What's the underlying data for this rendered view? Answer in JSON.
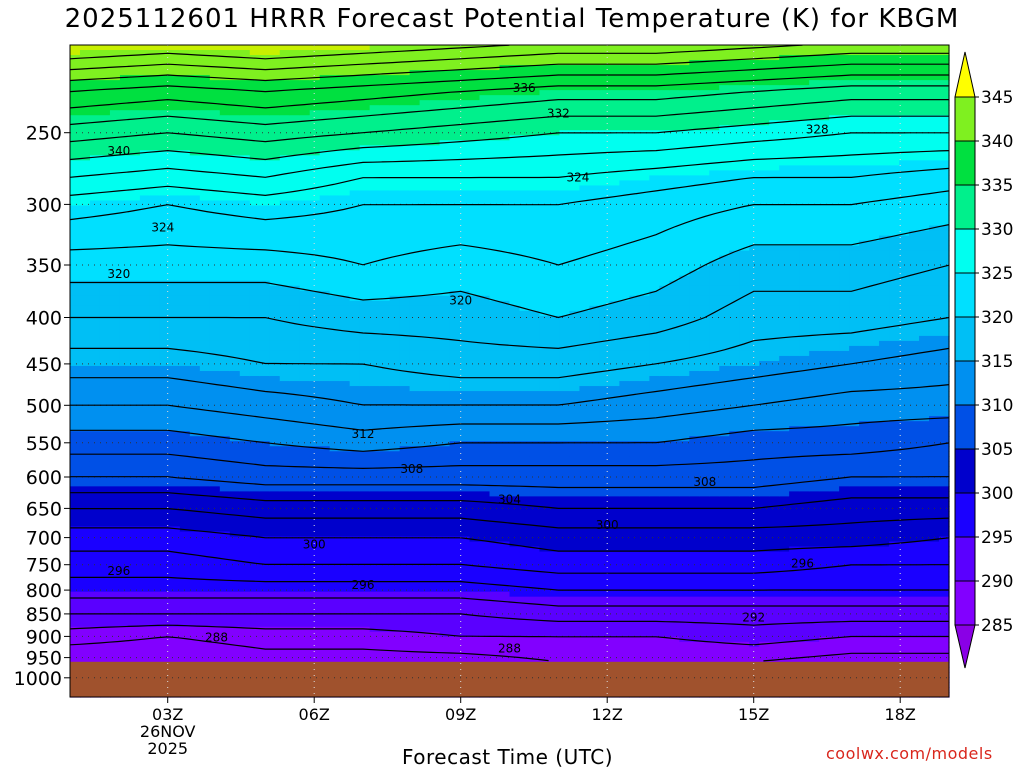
{
  "header": {
    "title": "2025112601 HRRR Forecast Potential Temperature (K) for KBGM",
    "xlabel": "Forecast Time (UTC)",
    "credit": "coolwx.com/models"
  },
  "chart_data": {
    "type": "heatmap",
    "title": "2025112601 HRRR Forecast Potential Temperature (K) for KBGM",
    "xlabel": "Forecast Time (UTC)",
    "ylabel": "",
    "x_range_hours": [
      1,
      19
    ],
    "y_range_hpa": [
      200,
      1050
    ],
    "y_scale": "log-pressure",
    "grid": "dotted",
    "x_ticks": [
      {
        "hour": 3,
        "label": "03Z",
        "sub": [
          "26NOV",
          "2025"
        ]
      },
      {
        "hour": 6,
        "label": "06Z"
      },
      {
        "hour": 9,
        "label": "09Z"
      },
      {
        "hour": 12,
        "label": "12Z"
      },
      {
        "hour": 15,
        "label": "15Z"
      },
      {
        "hour": 18,
        "label": "18Z"
      }
    ],
    "y_ticks": [
      250,
      300,
      350,
      400,
      450,
      500,
      550,
      600,
      650,
      700,
      750,
      800,
      850,
      900,
      950,
      1000
    ],
    "colorbar": {
      "levels": [
        280,
        285,
        290,
        295,
        300,
        305,
        310,
        315,
        320,
        325,
        330,
        335,
        340,
        345,
        350
      ],
      "labels": [
        "285",
        "290",
        "295",
        "300",
        "305",
        "310",
        "315",
        "320",
        "325",
        "330",
        "335",
        "340",
        "345"
      ],
      "colors": [
        "#8a00e6",
        "#8200ff",
        "#5a00ff",
        "#1a00ff",
        "#0000cc",
        "#0050e6",
        "#0090f0",
        "#00bff5",
        "#00e0ff",
        "#00fff0",
        "#00f08c",
        "#00e040",
        "#7ff020",
        "#c8f000",
        "#ffff00"
      ]
    },
    "profile_hours": [
      1,
      3,
      5,
      7,
      9,
      11,
      13,
      15,
      17,
      19
    ],
    "contour_levels": [
      286,
      288,
      290,
      292,
      294,
      296,
      298,
      300,
      302,
      304,
      306,
      308,
      310,
      312,
      314,
      316,
      318,
      320,
      322,
      324,
      326,
      328,
      330,
      332,
      334,
      336,
      338,
      340,
      342,
      344
    ],
    "theta_profiles": [
      {
        "hour": 1,
        "pressure": [
          960,
          900,
          850,
          800,
          750,
          700,
          650,
          600,
          550,
          500,
          450,
          400,
          350,
          300,
          280,
          250,
          225,
          210
        ],
        "theta": [
          286,
          289,
          292,
          295,
          297,
          299,
          302,
          306,
          309,
          312,
          315,
          318,
          321,
          325,
          328,
          333,
          338,
          343
        ]
      },
      {
        "hour": 3,
        "pressure": [
          960,
          900,
          850,
          800,
          750,
          700,
          650,
          600,
          550,
          500,
          450,
          400,
          350,
          300,
          280,
          250,
          225,
          210
        ],
        "theta": [
          286,
          288,
          292,
          295,
          297,
          299,
          302,
          306,
          309,
          312,
          315,
          318,
          321,
          324,
          327,
          332,
          337,
          342
        ]
      },
      {
        "hour": 5,
        "pressure": [
          960,
          900,
          850,
          800,
          750,
          700,
          650,
          600,
          550,
          500,
          450,
          400,
          350,
          300,
          280,
          250,
          225,
          210
        ],
        "theta": [
          287,
          289,
          292,
          295,
          298,
          300,
          303,
          307,
          310,
          313,
          316,
          318,
          321,
          325,
          328,
          333,
          338,
          343
        ]
      },
      {
        "hour": 7,
        "pressure": [
          960,
          900,
          850,
          800,
          750,
          700,
          650,
          600,
          550,
          500,
          450,
          400,
          350,
          300,
          280,
          250,
          225,
          210
        ],
        "theta": [
          287,
          289,
          292,
          295,
          298,
          300,
          303,
          307,
          311,
          314,
          316,
          319,
          322,
          324,
          326,
          332,
          337,
          342
        ]
      },
      {
        "hour": 9,
        "pressure": [
          960,
          900,
          850,
          800,
          750,
          700,
          650,
          600,
          550,
          500,
          450,
          400,
          350,
          300,
          280,
          250,
          225,
          210
        ],
        "theta": [
          287,
          290,
          292,
          295,
          298,
          300,
          303,
          307,
          310,
          314,
          317,
          319,
          321,
          324,
          326,
          331,
          336,
          341
        ]
      },
      {
        "hour": 11,
        "pressure": [
          960,
          900,
          850,
          800,
          750,
          700,
          650,
          600,
          550,
          500,
          450,
          400,
          350,
          300,
          280,
          250,
          225,
          210
        ],
        "theta": [
          288,
          290,
          293,
          296,
          299,
          301,
          304,
          307,
          310,
          314,
          317,
          320,
          322,
          324,
          326,
          330,
          335,
          340
        ]
      },
      {
        "hour": 13,
        "pressure": [
          960,
          900,
          850,
          800,
          750,
          700,
          650,
          600,
          550,
          500,
          450,
          400,
          350,
          300,
          280,
          250,
          225,
          210
        ],
        "theta": [
          288,
          290,
          293,
          296,
          299,
          301,
          304,
          307,
          310,
          313,
          316,
          319,
          321,
          323,
          325,
          330,
          335,
          340
        ]
      },
      {
        "hour": 15,
        "pressure": [
          960,
          900,
          850,
          800,
          750,
          700,
          650,
          600,
          550,
          500,
          450,
          400,
          350,
          300,
          280,
          250,
          225,
          210
        ],
        "theta": [
          288,
          291,
          293,
          296,
          299,
          301,
          304,
          307,
          309,
          312,
          315,
          317,
          319,
          322,
          324,
          329,
          334,
          339
        ]
      },
      {
        "hour": 17,
        "pressure": [
          960,
          900,
          850,
          800,
          750,
          700,
          650,
          600,
          550,
          500,
          450,
          400,
          350,
          300,
          280,
          250,
          225,
          210
        ],
        "theta": [
          287,
          290,
          293,
          296,
          298,
          301,
          303,
          306,
          309,
          311,
          314,
          317,
          319,
          322,
          324,
          328,
          333,
          338
        ]
      },
      {
        "hour": 19,
        "pressure": [
          960,
          900,
          850,
          800,
          750,
          700,
          650,
          600,
          550,
          500,
          450,
          400,
          350,
          300,
          280,
          250,
          225,
          210
        ],
        "theta": [
          287,
          290,
          293,
          296,
          298,
          300,
          303,
          306,
          308,
          311,
          313,
          316,
          318,
          321,
          323,
          328,
          333,
          338
        ]
      }
    ],
    "contour_labels": [
      {
        "hour": 2.0,
        "pressure": 262,
        "text": "340"
      },
      {
        "hour": 10.3,
        "pressure": 223,
        "text": "336"
      },
      {
        "hour": 11.0,
        "pressure": 238,
        "text": "332"
      },
      {
        "hour": 16.3,
        "pressure": 248,
        "text": "328"
      },
      {
        "hour": 11.4,
        "pressure": 280,
        "text": "324"
      },
      {
        "hour": 2.9,
        "pressure": 318,
        "text": "324"
      },
      {
        "hour": 2.0,
        "pressure": 358,
        "text": "320"
      },
      {
        "hour": 9.0,
        "pressure": 383,
        "text": "320"
      },
      {
        "hour": 7.0,
        "pressure": 538,
        "text": "312"
      },
      {
        "hour": 8.0,
        "pressure": 588,
        "text": "308"
      },
      {
        "hour": 14.0,
        "pressure": 608,
        "text": "308"
      },
      {
        "hour": 10.0,
        "pressure": 635,
        "text": "304"
      },
      {
        "hour": 12.0,
        "pressure": 678,
        "text": "300"
      },
      {
        "hour": 6.0,
        "pressure": 712,
        "text": "300"
      },
      {
        "hour": 2.0,
        "pressure": 762,
        "text": "296"
      },
      {
        "hour": 7.0,
        "pressure": 790,
        "text": "296"
      },
      {
        "hour": 16.0,
        "pressure": 748,
        "text": "296"
      },
      {
        "hour": 15.0,
        "pressure": 858,
        "text": "292"
      },
      {
        "hour": 4.0,
        "pressure": 902,
        "text": "288"
      },
      {
        "hour": 10.0,
        "pressure": 928,
        "text": "288"
      }
    ],
    "surface_pressure_hpa": 960,
    "below_ground_color": "#a0522d"
  }
}
